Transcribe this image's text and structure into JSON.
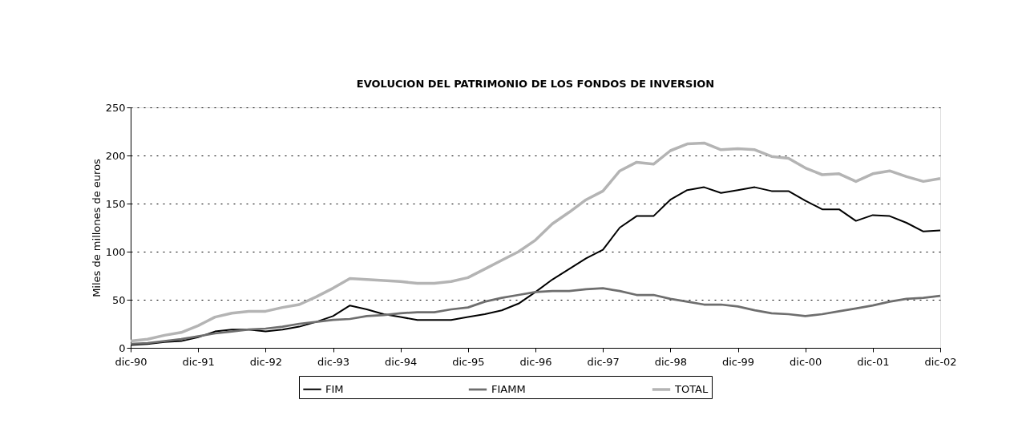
{
  "chart_data": {
    "type": "line",
    "title": "EVOLUCION DEL PATRIMONIO DE LOS FONDOS DE INVERSION",
    "ylabel": "Miles de millones de euros",
    "categories": [
      "dic-90",
      null,
      null,
      null,
      "dic-91",
      null,
      null,
      null,
      "dic-92",
      null,
      null,
      null,
      "dic-93",
      null,
      null,
      null,
      "dic-94",
      null,
      null,
      null,
      "dic-95",
      null,
      null,
      null,
      "dic-96",
      null,
      null,
      null,
      "dic-97",
      null,
      null,
      null,
      "dic-98",
      null,
      null,
      null,
      "dic-99",
      null,
      null,
      null,
      "dic-00",
      null,
      null,
      null,
      "dic-01",
      null,
      null,
      null,
      "dic-02"
    ],
    "series": [
      {
        "name": "FIM",
        "color": "#000000",
        "values": [
          3,
          4,
          6,
          7,
          11,
          17,
          19,
          19,
          17,
          19,
          22,
          27,
          33,
          44,
          40,
          35,
          32,
          29,
          29,
          29,
          32,
          35,
          39,
          46,
          58,
          71,
          82,
          93,
          102,
          125,
          137,
          137,
          154,
          164,
          167,
          161,
          164,
          167,
          163,
          163,
          153,
          144,
          144,
          132,
          138,
          137,
          130,
          121,
          122
        ]
      },
      {
        "name": "FIAMM",
        "color": "#6e6e6e",
        "values": [
          4,
          5,
          7,
          9,
          12,
          15,
          17,
          19,
          20,
          22,
          25,
          27,
          29,
          30,
          33,
          34,
          36,
          37,
          37,
          40,
          42,
          48,
          52,
          55,
          58,
          59,
          59,
          61,
          62,
          59,
          55,
          55,
          51,
          48,
          45,
          45,
          43,
          39,
          36,
          35,
          33,
          35,
          38,
          41,
          44,
          48,
          51,
          52,
          54
        ]
      },
      {
        "name": "TOTAL",
        "color": "#b4b4b4",
        "values": [
          7,
          9,
          13,
          16,
          23,
          32,
          36,
          38,
          38,
          42,
          45,
          53,
          62,
          72,
          71,
          70,
          69,
          67,
          67,
          69,
          73,
          82,
          91,
          100,
          112,
          129,
          141,
          154,
          163,
          184,
          193,
          191,
          205,
          212,
          213,
          206,
          207,
          206,
          199,
          197,
          187,
          180,
          181,
          173,
          181,
          184,
          178,
          173,
          176
        ]
      }
    ],
    "ylim": [
      0,
      250
    ],
    "yticks": [
      0,
      50,
      100,
      150,
      200,
      250
    ],
    "grid": "y",
    "legend": "bottom",
    "marker": "none",
    "line_style": "solid"
  }
}
